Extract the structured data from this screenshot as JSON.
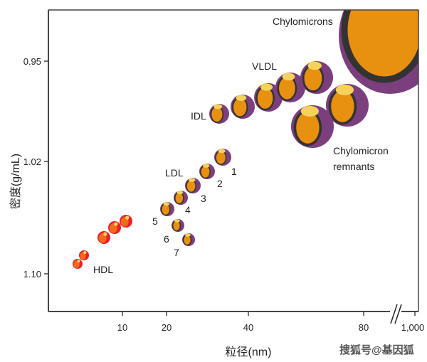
{
  "axes": {
    "y_label": "密度(g/mL)",
    "x_label": "粒径(nm)",
    "y_ticks": [
      "0.95",
      "1.02",
      "1.10"
    ],
    "x_ticks": [
      "10",
      "20",
      "40",
      "80",
      "1,000"
    ],
    "x_axis_break": true
  },
  "labels": {
    "chylomicrons": "Chylomicrons",
    "vldl": "VLDL",
    "idl": "IDL",
    "ldl": "LDL",
    "remnants_line1": "Chylomicron",
    "remnants_line2": "remnants",
    "hdl": "HDL",
    "ldl_subclasses": [
      "1",
      "2",
      "3",
      "4",
      "5",
      "6",
      "7"
    ]
  },
  "colors": {
    "shell": "#7b3f7e",
    "core": "#e8900f",
    "ring": "#333333",
    "cap": "#f5d35a",
    "hdl_shell": "#e8202a",
    "hdl_core": "#f26a1b"
  },
  "watermark": "搜狐号@基因狐"
}
